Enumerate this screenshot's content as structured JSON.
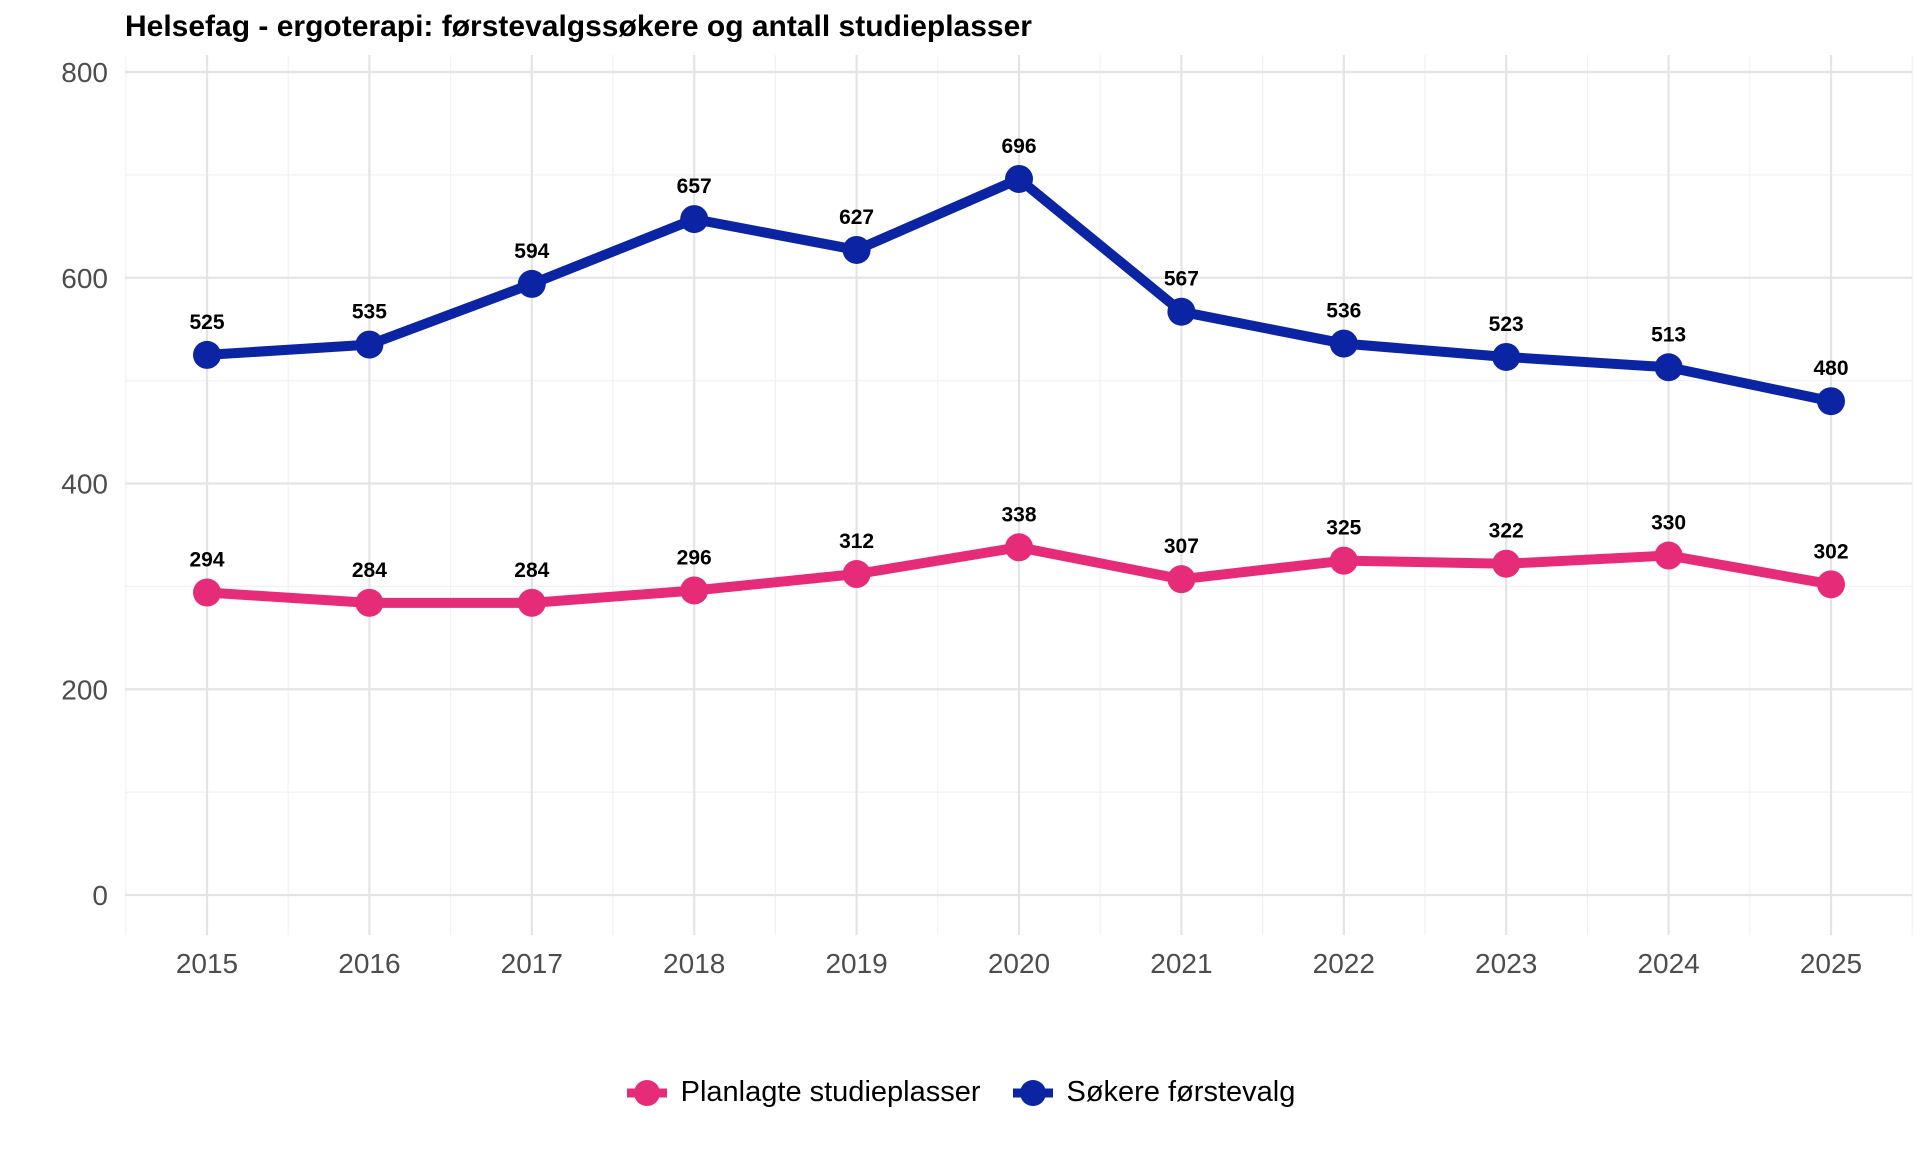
{
  "chart_data": {
    "type": "line",
    "title": "Helsefag - ergoterapi: førstevalgssøkere og antall studieplasser",
    "xlabel": "",
    "ylabel": "",
    "x": [
      2015,
      2016,
      2017,
      2018,
      2019,
      2020,
      2021,
      2022,
      2023,
      2024,
      2025
    ],
    "x_tick_labels": [
      "2015",
      "2016",
      "2017",
      "2018",
      "2019",
      "2020",
      "2021",
      "2022",
      "2023",
      "2024",
      "2025"
    ],
    "ylim": [
      0,
      800
    ],
    "y_ticks": [
      0,
      200,
      400,
      600,
      800
    ],
    "grid": true,
    "legend_position": "bottom",
    "series": [
      {
        "name": "Søkere førstevalg",
        "color": "#0b24a3",
        "values": [
          525,
          535,
          594,
          657,
          627,
          696,
          567,
          536,
          523,
          513,
          480
        ]
      },
      {
        "name": "Planlagte studieplasser",
        "color": "#e62c79",
        "values": [
          294,
          284,
          284,
          296,
          312,
          338,
          307,
          325,
          322,
          330,
          302
        ]
      }
    ],
    "legend_order": [
      1,
      0
    ]
  }
}
